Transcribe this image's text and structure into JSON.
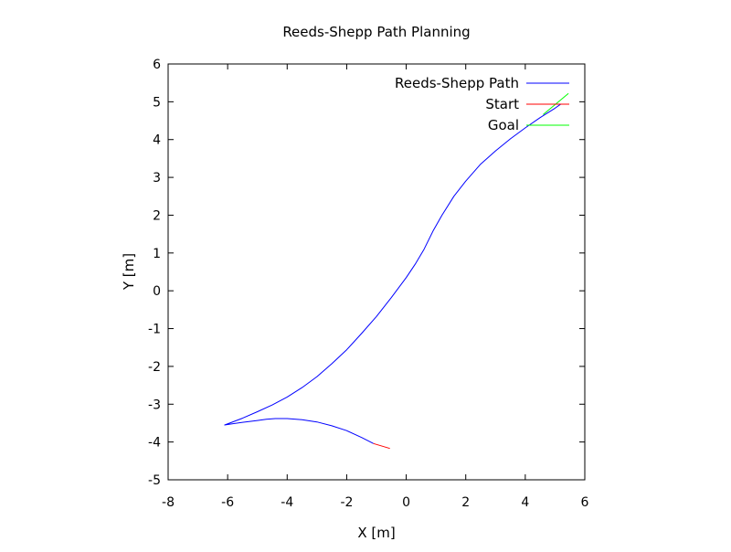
{
  "chart_data": {
    "type": "line",
    "title": "Reeds-Shepp Path Planning",
    "xlabel": "X [m]",
    "ylabel": "Y [m]",
    "xlim": [
      -8,
      6
    ],
    "ylim": [
      -5,
      6
    ],
    "xticks": [
      -8,
      -6,
      -4,
      -2,
      0,
      2,
      4,
      6
    ],
    "yticks": [
      -5,
      -4,
      -3,
      -2,
      -1,
      0,
      1,
      2,
      3,
      4,
      5,
      6
    ],
    "grid": false,
    "legend_position": "top-right",
    "series": [
      {
        "name": "Reeds-Shepp Path",
        "color": "#0000ff",
        "x": [
          -1.1,
          -1.5,
          -2.0,
          -2.5,
          -3.0,
          -3.5,
          -4.0,
          -4.4,
          -4.7,
          -5.0,
          -5.5,
          -6.1,
          -5.5,
          -5.0,
          -4.5,
          -4.0,
          -3.5,
          -3.0,
          -2.5,
          -2.0,
          -1.5,
          -1.0,
          -0.5,
          0.0,
          0.3,
          0.6,
          0.9,
          1.2,
          1.6,
          2.0,
          2.5,
          3.0,
          3.5,
          4.0,
          4.5,
          5.0,
          5.2
        ],
        "y": [
          -4.04,
          -3.88,
          -3.7,
          -3.57,
          -3.47,
          -3.41,
          -3.38,
          -3.38,
          -3.4,
          -3.43,
          -3.48,
          -3.55,
          -3.37,
          -3.2,
          -3.02,
          -2.81,
          -2.56,
          -2.27,
          -1.93,
          -1.56,
          -1.13,
          -0.68,
          -0.18,
          0.35,
          0.7,
          1.1,
          1.58,
          2.0,
          2.5,
          2.9,
          3.35,
          3.7,
          4.02,
          4.31,
          4.58,
          4.83,
          4.94
        ]
      },
      {
        "name": "Start",
        "color": "#ff0000",
        "x": [
          -1.1,
          -0.55
        ],
        "y": [
          -4.04,
          -4.17
        ]
      },
      {
        "name": "Goal",
        "color": "#00ff00",
        "x": [
          4.6,
          5.45
        ],
        "y": [
          4.66,
          5.22
        ]
      }
    ]
  }
}
